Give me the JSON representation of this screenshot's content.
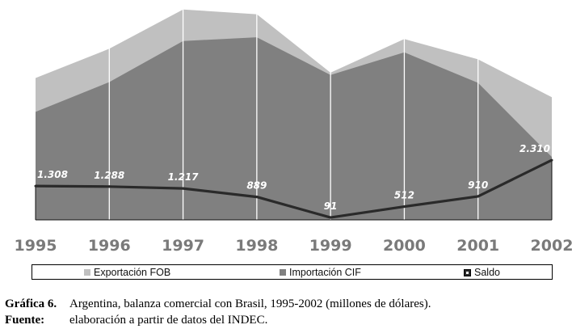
{
  "chart_data": {
    "type": "area",
    "title": "Argentina, balanza comercial con Brasil, 1995-2002 (millones de dólares)",
    "categories": [
      "1995",
      "1996",
      "1997",
      "1998",
      "1999",
      "2000",
      "2001",
      "2002"
    ],
    "series": [
      {
        "name": "Exportación FOB",
        "type": "area",
        "color": "#c0c0c0",
        "values": [
          5484,
          6615,
          8133,
          7949,
          5690,
          6990,
          6206,
          4743
        ]
      },
      {
        "name": "Importación CIF",
        "type": "area",
        "color": "#808080",
        "values": [
          4176,
          5327,
          6916,
          7060,
          5599,
          6478,
          5296,
          2433
        ]
      },
      {
        "name": "Saldo",
        "type": "line",
        "color": "#2a2a2a",
        "values": [
          1308,
          1288,
          1217,
          889,
          91,
          512,
          910,
          2310
        ],
        "labels": [
          "1.308",
          "1.288",
          "1.217",
          "889",
          "91",
          "512",
          "910",
          "2.310"
        ]
      }
    ],
    "ylim": [
      0,
      8500
    ],
    "grid": "vertical",
    "legend": "bottom"
  },
  "legend_labels": [
    "Exportación FOB",
    "Importación CIF",
    "Saldo"
  ],
  "caption": {
    "figure_label": "Gráfica 6.",
    "figure_text": "Argentina, balanza comercial con Brasil, 1995-2002 (millones de dólares).",
    "source_label": "Fuente:",
    "source_text_pre": "elaboración a partir de datos del",
    "source_text_abbrev": "INDEC",
    "source_text_post": "."
  }
}
